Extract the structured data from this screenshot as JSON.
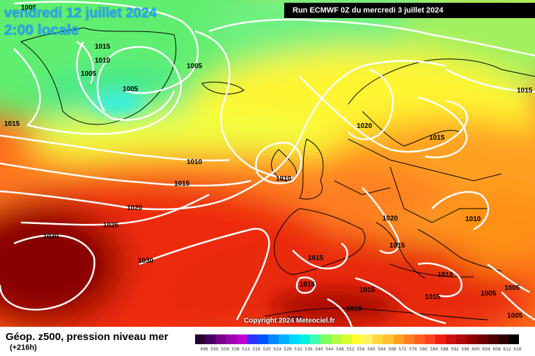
{
  "title": {
    "line1": "vendredi 12 juillet 2024",
    "line2": "2:00 locale"
  },
  "run": "Run ECMWF 0Z du mercredi 3 juillet 2024",
  "copyright": "Copyright 2024 Meteociel.fr",
  "footer": {
    "title": "Géop. z500, pression niveau mer",
    "subtitle": "(+216h)"
  },
  "legend": {
    "values": [
      "496",
      "500",
      "504",
      "508",
      "512",
      "516",
      "520",
      "524",
      "528",
      "532",
      "536",
      "540",
      "544",
      "548",
      "552",
      "556",
      "560",
      "564",
      "568",
      "572",
      "576",
      "580",
      "584",
      "588",
      "592",
      "596",
      "600",
      "604",
      "608",
      "612",
      "616"
    ],
    "colors": [
      "#2a0030",
      "#4a0060",
      "#7a008a",
      "#a000b0",
      "#c000d0",
      "#3030ff",
      "#0050ff",
      "#0088ff",
      "#00b0ff",
      "#00d8ff",
      "#00f0e0",
      "#40ffb0",
      "#80ff60",
      "#b0ff40",
      "#d8ff30",
      "#ffff30",
      "#fff060",
      "#ffd840",
      "#ffc030",
      "#ffa020",
      "#ff8020",
      "#ff6020",
      "#ff4020",
      "#ee2010",
      "#d01010",
      "#b00808",
      "#900000",
      "#700000",
      "#500000",
      "#300000",
      "#000000"
    ]
  },
  "isobars": [
    {
      "label": "1005"
    },
    {
      "label": "1015"
    },
    {
      "label": "1010"
    },
    {
      "label": "1005"
    },
    {
      "label": "1005"
    },
    {
      "label": "1005"
    },
    {
      "label": "1015"
    },
    {
      "label": "1015"
    },
    {
      "label": "1010"
    },
    {
      "label": "1015"
    },
    {
      "label": "1010"
    },
    {
      "label": "1020"
    },
    {
      "label": "1025"
    },
    {
      "label": "1030"
    },
    {
      "label": "1030"
    },
    {
      "label": "1020"
    },
    {
      "label": "1015"
    },
    {
      "label": "1020"
    },
    {
      "label": "1015"
    },
    {
      "label": "1010"
    },
    {
      "label": "1015"
    },
    {
      "label": "1015"
    },
    {
      "label": "1015"
    },
    {
      "label": "1015"
    },
    {
      "label": "1010"
    },
    {
      "label": "1010"
    },
    {
      "label": "1005"
    },
    {
      "label": "1005"
    },
    {
      "label": "1005"
    },
    {
      "label": "1015"
    }
  ]
}
